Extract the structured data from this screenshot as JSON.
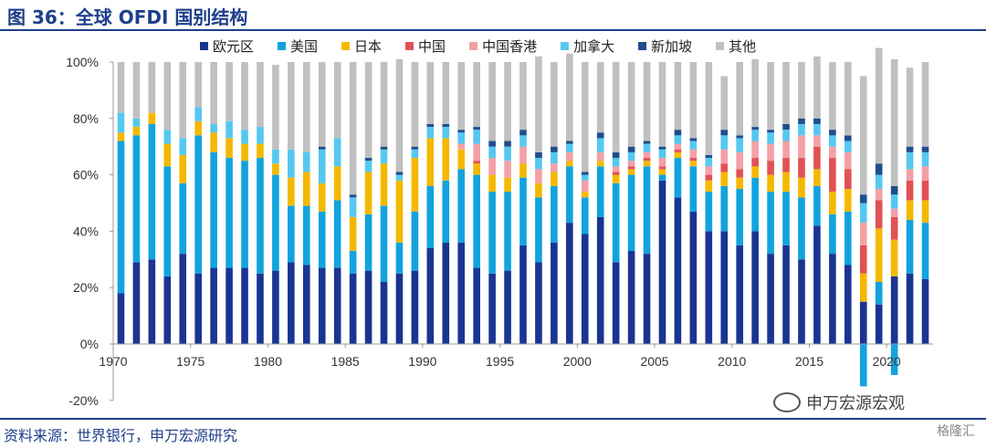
{
  "header": {
    "title": "图 36：全球 OFDI 国别结构"
  },
  "footer": {
    "source": "资料来源：世界银行，申万宏源研究"
  },
  "watermark": {
    "text": "申万宏源宏观"
  },
  "corner_mark": {
    "text": "格隆汇"
  },
  "chart_data": {
    "type": "bar",
    "stacked": true,
    "title": "",
    "xlabel": "",
    "ylabel": "",
    "ylim": [
      -0.2,
      1.0
    ],
    "yticks": [
      "-20%",
      "0%",
      "20%",
      "40%",
      "60%",
      "80%",
      "100%"
    ],
    "xticks": [
      "1970",
      "1975",
      "1980",
      "1985",
      "1990",
      "1995",
      "2000",
      "2005",
      "2010",
      "2015",
      "2020"
    ],
    "grid": false,
    "legend_position": "top",
    "categories": [
      1970,
      1971,
      1972,
      1973,
      1974,
      1975,
      1976,
      1977,
      1978,
      1979,
      1980,
      1981,
      1982,
      1983,
      1984,
      1985,
      1986,
      1987,
      1988,
      1989,
      1990,
      1991,
      1992,
      1993,
      1994,
      1995,
      1996,
      1997,
      1998,
      1999,
      2000,
      2001,
      2002,
      2003,
      2004,
      2005,
      2006,
      2007,
      2008,
      2009,
      2010,
      2011,
      2012,
      2013,
      2014,
      2015,
      2016,
      2017,
      2018,
      2019,
      2020,
      2021,
      2022
    ],
    "series": [
      {
        "name": "欧元区",
        "color": "#1a3591",
        "values": [
          0.18,
          0.29,
          0.3,
          0.24,
          0.32,
          0.25,
          0.27,
          0.27,
          0.27,
          0.25,
          0.26,
          0.29,
          0.28,
          0.27,
          0.27,
          0.25,
          0.26,
          0.22,
          0.25,
          0.26,
          0.34,
          0.36,
          0.36,
          0.27,
          0.25,
          0.26,
          0.35,
          0.29,
          0.36,
          0.43,
          0.39,
          0.45,
          0.29,
          0.33,
          0.32,
          0.58,
          0.52,
          0.47,
          0.4,
          0.4,
          0.35,
          0.4,
          0.32,
          0.35,
          0.3,
          0.42,
          0.32,
          0.28,
          0.15,
          0.14,
          0.24,
          0.25,
          0.23
        ]
      },
      {
        "name": "美国",
        "color": "#12a3de",
        "values": [
          0.54,
          0.45,
          0.48,
          0.39,
          0.25,
          0.49,
          0.41,
          0.39,
          0.38,
          0.41,
          0.34,
          0.2,
          0.21,
          0.2,
          0.24,
          0.08,
          0.2,
          0.27,
          0.11,
          0.21,
          0.22,
          0.22,
          0.26,
          0.33,
          0.29,
          0.28,
          0.24,
          0.23,
          0.2,
          0.2,
          0.13,
          0.18,
          0.28,
          0.27,
          0.31,
          0.02,
          0.14,
          0.16,
          0.14,
          0.16,
          0.2,
          0.19,
          0.22,
          0.19,
          0.22,
          0.14,
          0.14,
          0.19,
          -0.15,
          0.08,
          -0.11,
          0.19,
          0.2
        ]
      },
      {
        "name": "日本",
        "color": "#f5b800",
        "values": [
          0.03,
          0.03,
          0.04,
          0.08,
          0.1,
          0.05,
          0.07,
          0.07,
          0.06,
          0.05,
          0.04,
          0.1,
          0.12,
          0.1,
          0.12,
          0.12,
          0.15,
          0.15,
          0.22,
          0.19,
          0.17,
          0.15,
          0.07,
          0.04,
          0.06,
          0.05,
          0.05,
          0.05,
          0.05,
          0.02,
          0.02,
          0.02,
          0.03,
          0.02,
          0.02,
          0.02,
          0.02,
          0.02,
          0.04,
          0.05,
          0.04,
          0.04,
          0.06,
          0.07,
          0.07,
          0.06,
          0.08,
          0.08,
          0.1,
          0.19,
          0.13,
          0.07,
          0.08
        ]
      },
      {
        "name": "中国",
        "color": "#e05254",
        "values": [
          0,
          0,
          0,
          0,
          0,
          0,
          0,
          0,
          0,
          0,
          0,
          0,
          0,
          0,
          0,
          0,
          0,
          0,
          0,
          0,
          0,
          0,
          0,
          0.01,
          0,
          0,
          0,
          0,
          0,
          0,
          0,
          0,
          0.01,
          0.01,
          0.01,
          0.01,
          0.01,
          0.01,
          0.02,
          0.03,
          0.03,
          0.03,
          0.05,
          0.05,
          0.07,
          0.08,
          0.12,
          0.07,
          0.1,
          0.1,
          0.08,
          0.07,
          0.07
        ]
      },
      {
        "name": "中国香港",
        "color": "#f4a0a6",
        "values": [
          0,
          0,
          0,
          0,
          0,
          0,
          0,
          0,
          0,
          0,
          0,
          0,
          0,
          0,
          0,
          0,
          0,
          0,
          0,
          0,
          0,
          0,
          0.02,
          0.06,
          0.06,
          0.06,
          0.06,
          0.05,
          0.03,
          0.03,
          0.04,
          0.03,
          0.02,
          0.02,
          0.02,
          0.03,
          0.02,
          0.03,
          0.03,
          0.05,
          0.06,
          0.06,
          0.06,
          0.06,
          0.08,
          0.04,
          0.04,
          0.06,
          0.08,
          0.04,
          0.03,
          0.04,
          0.05
        ]
      },
      {
        "name": "加拿大",
        "color": "#55c8f0",
        "values": [
          0.07,
          0.03,
          0,
          0.05,
          0.06,
          0.05,
          0.03,
          0.06,
          0.05,
          0.06,
          0.05,
          0.1,
          0.07,
          0.12,
          0.1,
          0.07,
          0.04,
          0.05,
          0.02,
          0.03,
          0.04,
          0.04,
          0.04,
          0.05,
          0.04,
          0.05,
          0.04,
          0.04,
          0.04,
          0.03,
          0.02,
          0.05,
          0.03,
          0.03,
          0.03,
          0.03,
          0.03,
          0.03,
          0.03,
          0.05,
          0.05,
          0.04,
          0.04,
          0.04,
          0.04,
          0.04,
          0.04,
          0.04,
          0.07,
          0.05,
          0.05,
          0.06,
          0.05
        ]
      },
      {
        "name": "新加坡",
        "color": "#1f4e8c",
        "values": [
          0,
          0,
          0,
          0,
          0,
          0,
          0,
          0,
          0,
          0,
          0,
          0,
          0,
          0.01,
          0,
          0.01,
          0.01,
          0.01,
          0.01,
          0.01,
          0.01,
          0.01,
          0.01,
          0.01,
          0.02,
          0.02,
          0.02,
          0.02,
          0.02,
          0.01,
          0.01,
          0.02,
          0.02,
          0.02,
          0.01,
          0.01,
          0.02,
          0.01,
          0.01,
          0.02,
          0.01,
          0.01,
          0.01,
          0.02,
          0.02,
          0.02,
          0.02,
          0.02,
          0.03,
          0.04,
          0.03,
          0.02,
          0.02
        ]
      },
      {
        "name": "其他",
        "color": "#c0c0c0",
        "values": [
          0.18,
          0.2,
          0.18,
          0.24,
          0.27,
          0.16,
          0.22,
          0.21,
          0.24,
          0.23,
          0.3,
          0.31,
          0.32,
          0.3,
          0.27,
          0.47,
          0.34,
          0.3,
          0.4,
          0.3,
          0.22,
          0.22,
          0.24,
          0.23,
          0.28,
          0.28,
          0.24,
          0.34,
          0.3,
          0.31,
          0.39,
          0.25,
          0.32,
          0.3,
          0.28,
          0.3,
          0.24,
          0.27,
          0.33,
          0.19,
          0.26,
          0.24,
          0.24,
          0.22,
          0.2,
          0.22,
          0.24,
          0.26,
          0.42,
          0.41,
          0.45,
          0.28,
          0.3
        ]
      }
    ]
  }
}
